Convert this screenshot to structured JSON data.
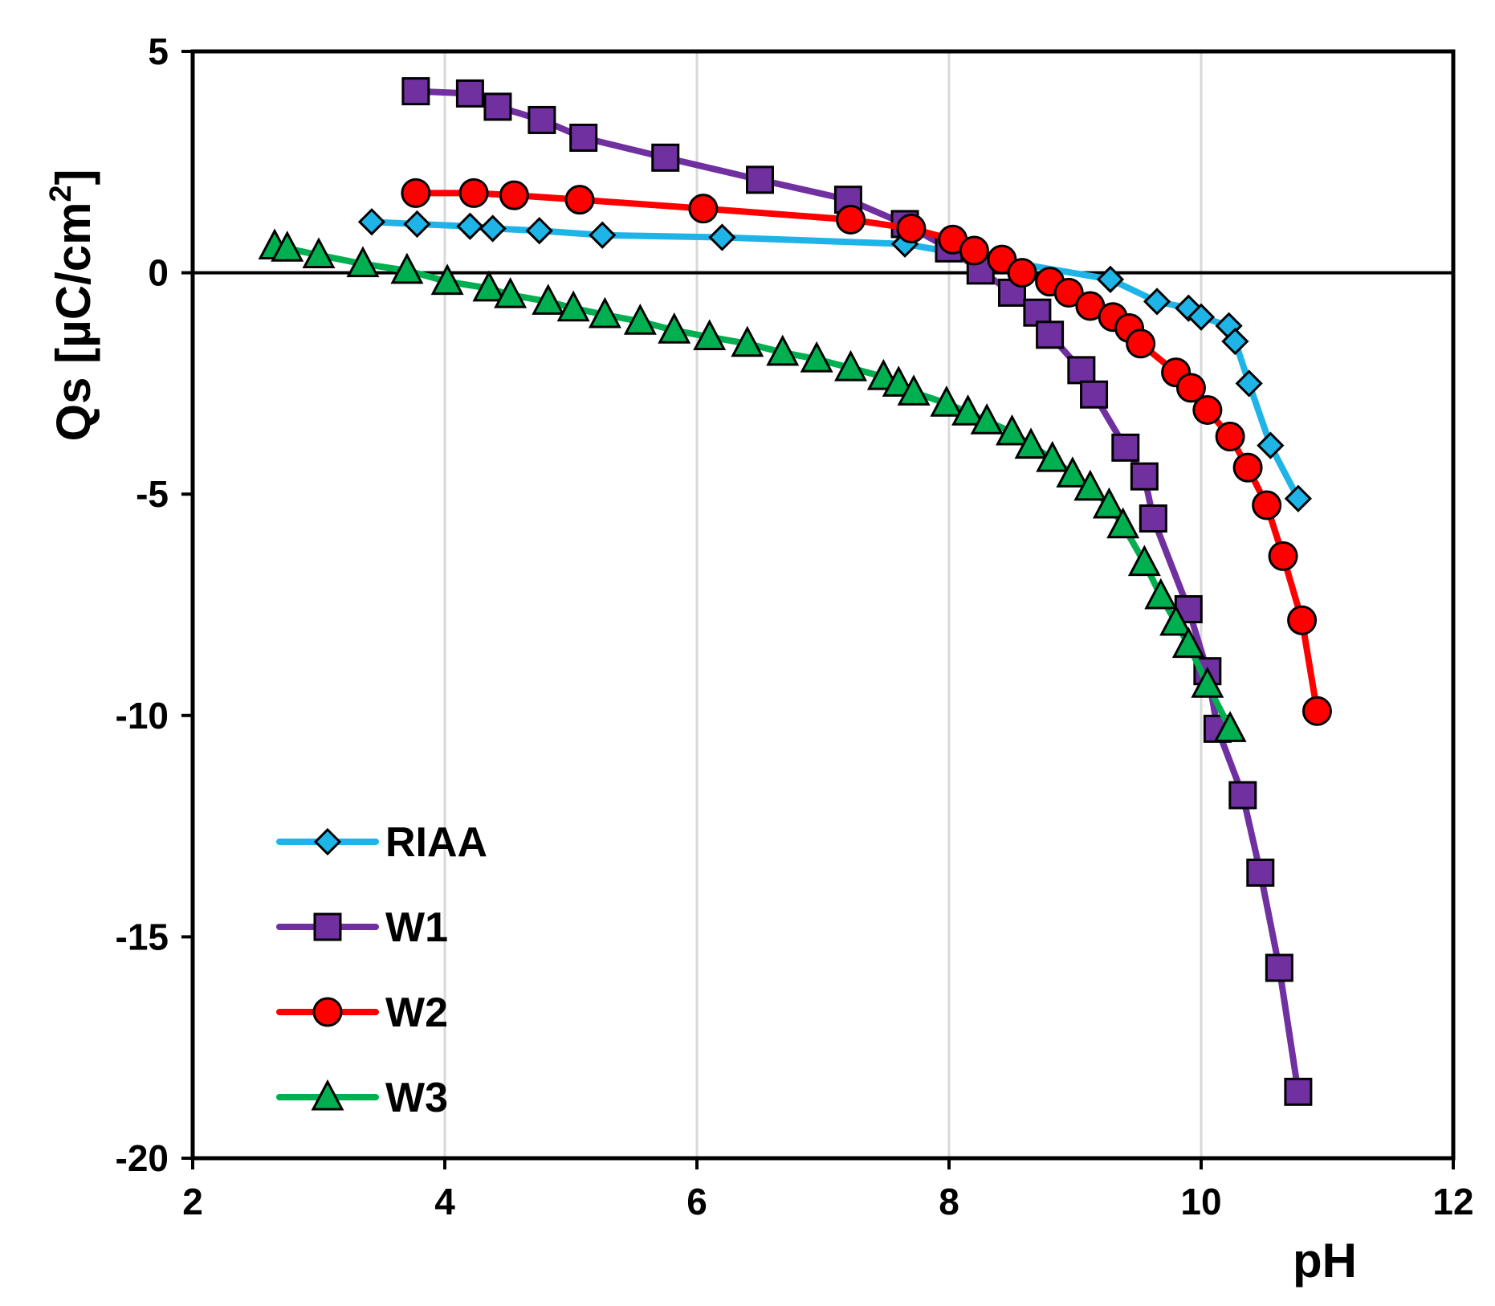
{
  "chart_data": {
    "type": "line",
    "title": "",
    "xlabel": "pH",
    "ylabel": "Qs [µC/cm",
    "ylabel_sup": "2",
    "ylabel_end": "]",
    "xlim": [
      2,
      12
    ],
    "ylim": [
      -20,
      5
    ],
    "x_ticks": [
      2,
      4,
      6,
      8,
      10,
      12
    ],
    "y_ticks": [
      5,
      0,
      -5,
      -10,
      -15,
      -20
    ],
    "x_tick_labels": [
      "2",
      "4",
      "6",
      "8",
      "10",
      "12"
    ],
    "y_tick_labels": [
      "5",
      "0",
      "-5",
      "-10",
      "-15",
      "-20"
    ],
    "vertical_gridlines": [
      4,
      6,
      8,
      10
    ],
    "zero_line": 0,
    "legend_position": "bottom-left",
    "series": [
      {
        "name": "RIAA",
        "color": "#1fb4e8",
        "marker": "diamond",
        "x": [
          3.42,
          3.78,
          4.2,
          4.38,
          4.75,
          5.25,
          6.2,
          7.65,
          9.28,
          9.65,
          9.9,
          10.0,
          10.22,
          10.27,
          10.38,
          10.55,
          10.77
        ],
        "y": [
          1.15,
          1.1,
          1.05,
          1.0,
          0.95,
          0.85,
          0.8,
          0.65,
          -0.15,
          -0.65,
          -0.8,
          -1.0,
          -1.2,
          -1.55,
          -2.5,
          -3.9,
          -5.1
        ]
      },
      {
        "name": "W1",
        "color": "#7030a0",
        "marker": "square",
        "x": [
          3.77,
          4.2,
          4.42,
          4.77,
          5.1,
          5.75,
          6.5,
          7.2,
          7.65,
          8.0,
          8.25,
          8.5,
          8.7,
          8.8,
          9.05,
          9.15,
          9.4,
          9.55,
          9.62,
          9.9,
          10.05,
          10.13,
          10.33,
          10.47,
          10.62,
          10.77
        ],
        "y": [
          4.1,
          4.05,
          3.75,
          3.45,
          3.05,
          2.6,
          2.1,
          1.65,
          1.1,
          0.55,
          0.05,
          -0.45,
          -0.9,
          -1.4,
          -2.2,
          -2.75,
          -3.95,
          -4.6,
          -5.55,
          -7.6,
          -9.0,
          -10.3,
          -11.8,
          -13.55,
          -15.7,
          -18.5
        ]
      },
      {
        "name": "W2",
        "color": "#ff0000",
        "marker": "circle",
        "x": [
          3.77,
          4.23,
          4.55,
          5.07,
          6.05,
          7.22,
          7.7,
          8.03,
          8.2,
          8.42,
          8.58,
          8.8,
          8.95,
          9.12,
          9.3,
          9.43,
          9.52,
          9.8,
          9.92,
          10.05,
          10.23,
          10.37,
          10.52,
          10.65,
          10.8,
          10.92
        ],
        "y": [
          1.8,
          1.8,
          1.75,
          1.65,
          1.45,
          1.2,
          1.0,
          0.75,
          0.5,
          0.3,
          0.0,
          -0.2,
          -0.45,
          -0.75,
          -1.0,
          -1.25,
          -1.6,
          -2.25,
          -2.6,
          -3.1,
          -3.7,
          -4.4,
          -5.25,
          -6.4,
          -7.85,
          -9.9
        ]
      },
      {
        "name": "W3",
        "color": "#00b050",
        "marker": "triangle",
        "x": [
          2.65,
          2.75,
          3.0,
          3.35,
          3.7,
          4.02,
          4.35,
          4.52,
          4.82,
          5.02,
          5.27,
          5.55,
          5.82,
          6.1,
          6.4,
          6.68,
          6.95,
          7.22,
          7.48,
          7.6,
          7.72,
          7.98,
          8.15,
          8.3,
          8.5,
          8.65,
          8.82,
          8.98,
          9.12,
          9.27,
          9.38,
          9.55,
          9.68,
          9.8,
          9.9,
          10.05,
          10.23
        ],
        "y": [
          0.6,
          0.55,
          0.4,
          0.2,
          0.05,
          -0.2,
          -0.35,
          -0.5,
          -0.65,
          -0.8,
          -0.95,
          -1.1,
          -1.3,
          -1.45,
          -1.6,
          -1.8,
          -1.95,
          -2.15,
          -2.35,
          -2.5,
          -2.7,
          -2.95,
          -3.15,
          -3.35,
          -3.6,
          -3.9,
          -4.2,
          -4.55,
          -4.85,
          -5.25,
          -5.7,
          -6.55,
          -7.3,
          -7.9,
          -8.4,
          -9.3,
          -10.3
        ]
      }
    ]
  }
}
